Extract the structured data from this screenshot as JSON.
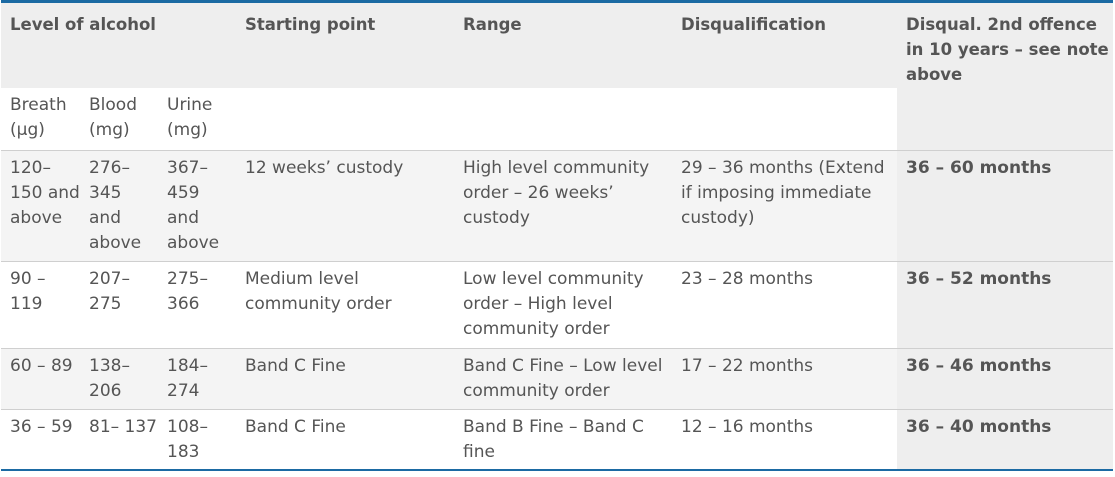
{
  "header": {
    "level": "Level of alcohol",
    "starting_point": "Starting point",
    "range": "Range",
    "disqualification": "Disqualification",
    "disqual2": "Disqual. 2nd offence in 10 years – see note above"
  },
  "subheader": {
    "breath": "Breath (µg)",
    "blood": "Blood (mg)",
    "urine": "Urine (mg)"
  },
  "rows": [
    {
      "breath": "120– 150 and above",
      "blood": "276– 345 and above",
      "urine": "367– 459 and above",
      "start": "12 weeks’ custody",
      "range": "High level community order – 26 weeks’ custody",
      "disq": "29 – 36 months (Extend if imposing immediate custody)",
      "disq2": "36 – 60 months"
    },
    {
      "breath": "90 – 119",
      "blood": "207– 275",
      "urine": "275– 366",
      "start": "Medium level community order",
      "range": "Low level community order – High level community order",
      "disq": "23 – 28 months",
      "disq2": "36 – 52 months"
    },
    {
      "breath": "60 – 89",
      "blood": "138– 206",
      "urine": "184– 274",
      "start": "Band C Fine",
      "range": "Band C Fine – Low level community order",
      "disq": "17 – 22 months",
      "disq2": "36 – 46 months"
    },
    {
      "breath": "36 – 59",
      "blood": "81– 137",
      "urine": "108– 183",
      "start": "Band C Fine",
      "range": "Band B Fine – Band C fine",
      "disq": "12 – 16 months",
      "disq2": "36 – 40 months"
    }
  ]
}
